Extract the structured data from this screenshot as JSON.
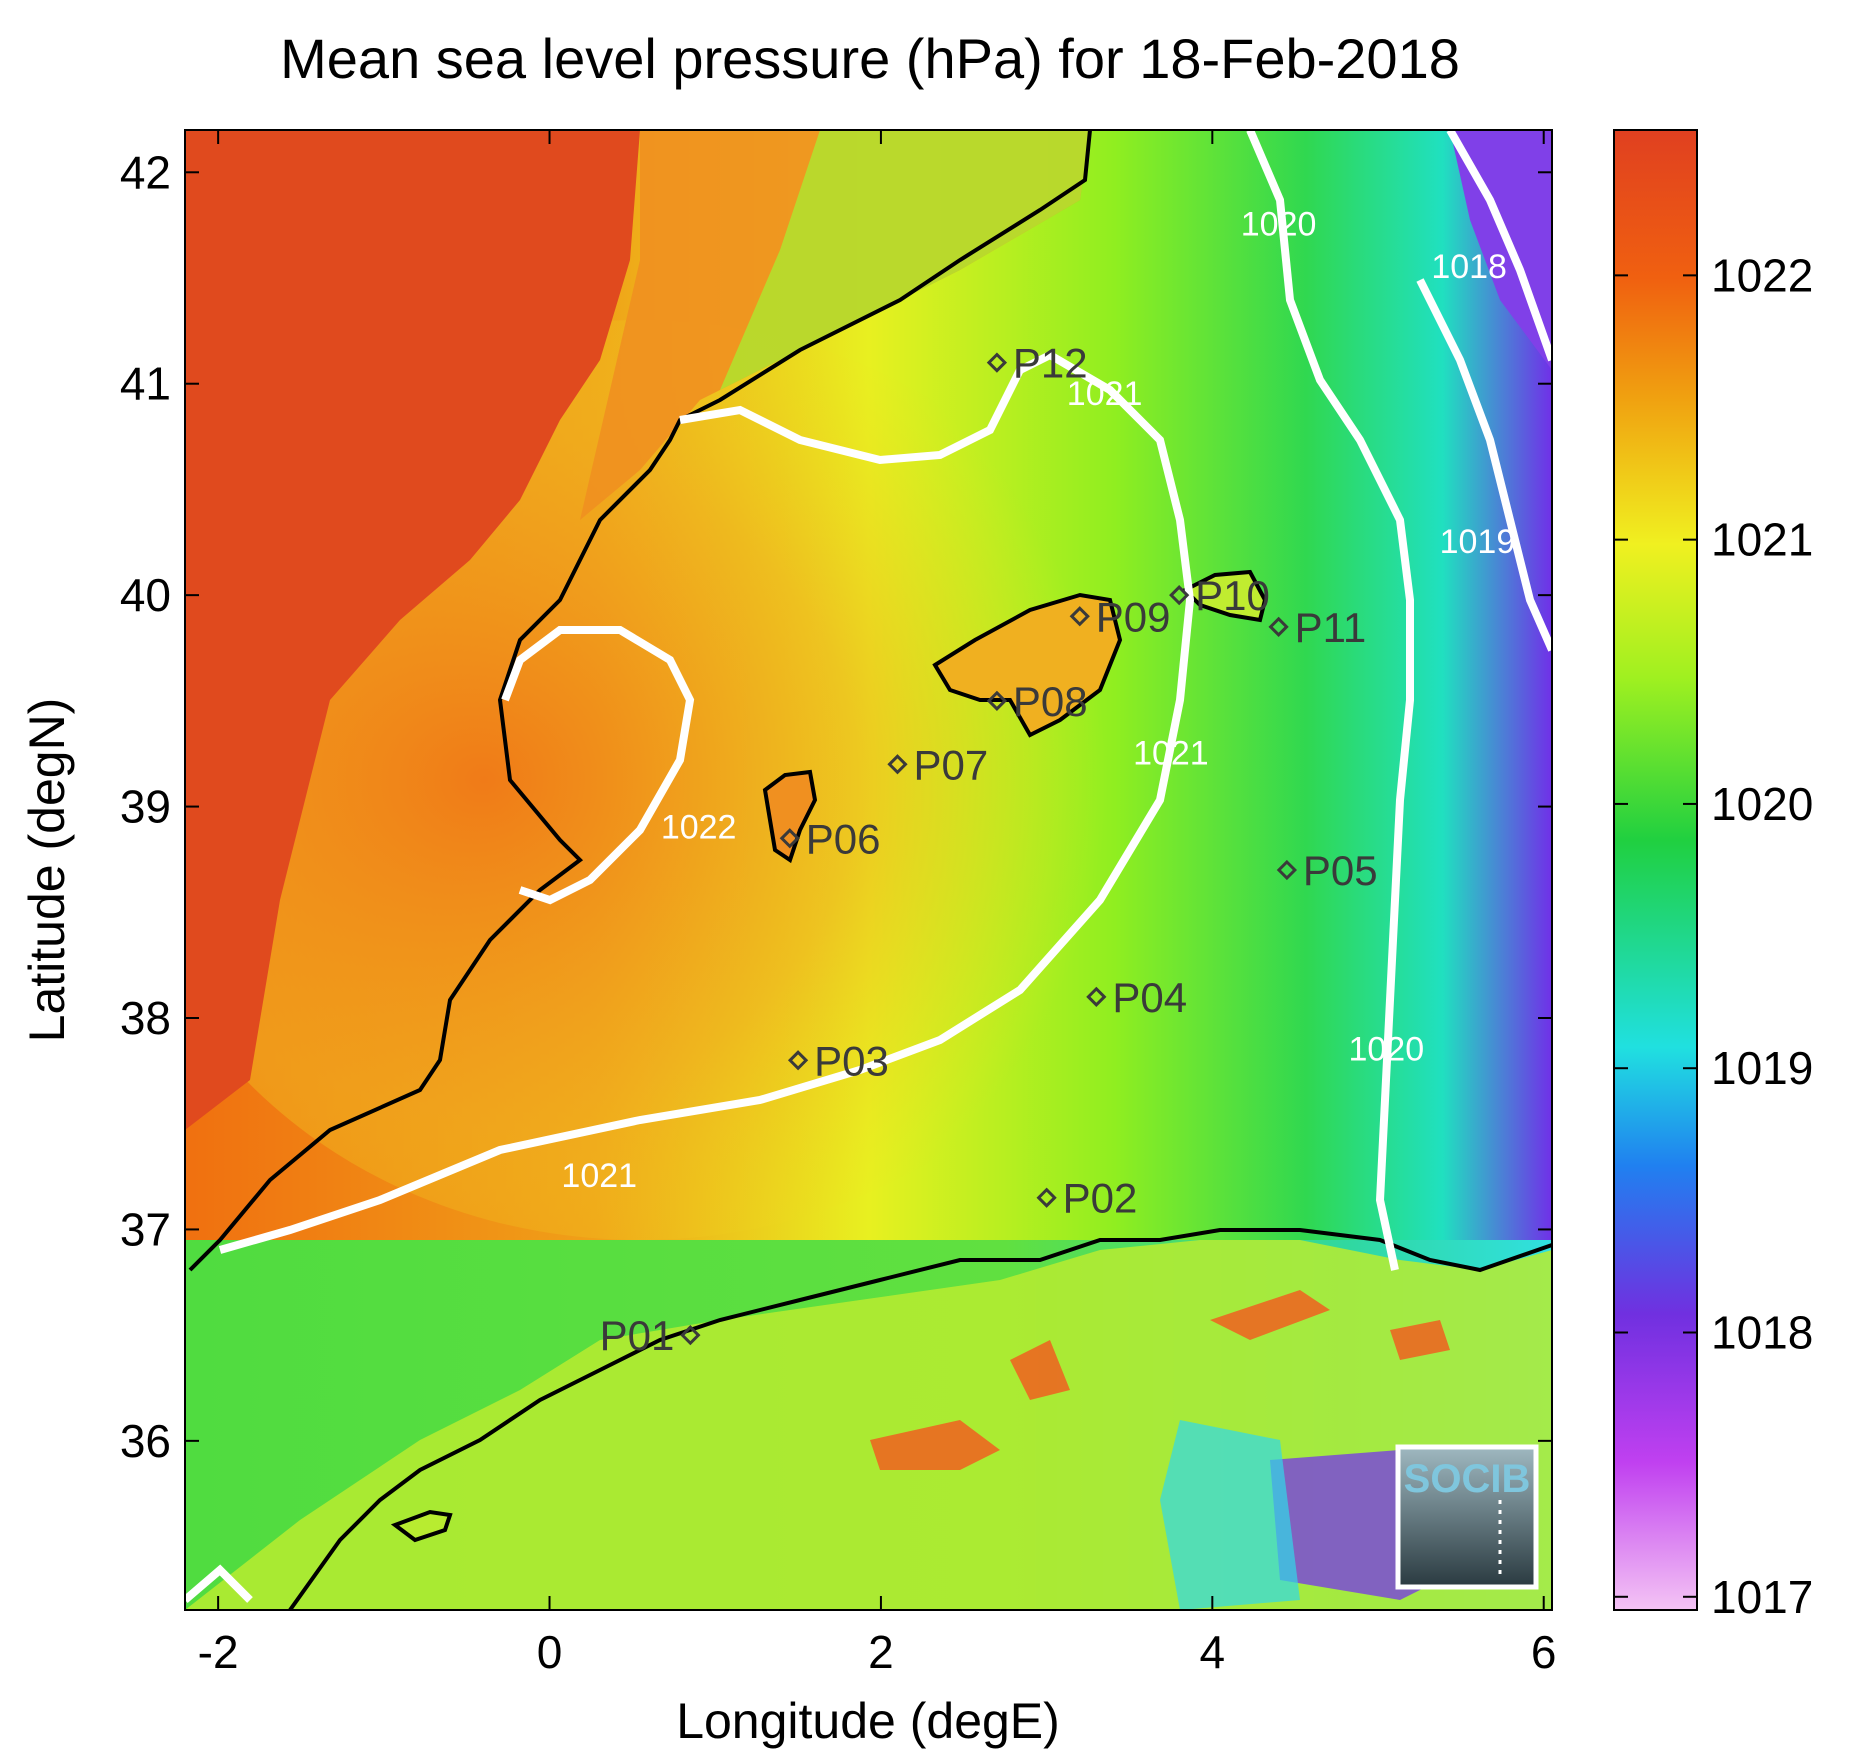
{
  "title": "Mean sea level pressure (hPa) for 18-Feb-2018",
  "xlabel": "Longitude (degE)",
  "ylabel": "Latitude (degN)",
  "logo_text": "SOCIB",
  "chart_data": {
    "type": "heatmap",
    "xlim": [
      -2.2,
      6.05
    ],
    "ylim": [
      35.2,
      42.2
    ],
    "x_ticks": [
      -2,
      0,
      2,
      4,
      6
    ],
    "y_ticks": [
      36,
      37,
      38,
      39,
      40,
      41,
      42
    ],
    "colorbar": {
      "range": [
        1016.95,
        1022.55
      ],
      "ticks": [
        1017,
        1018,
        1019,
        1020,
        1021,
        1022
      ],
      "colormap": [
        "#f4c4f4",
        "#c040f0",
        "#7030e0",
        "#2080f0",
        "#20e0e0",
        "#20d040",
        "#a0f020",
        "#f0f020",
        "#f0a010",
        "#f06010",
        "#e04020"
      ]
    },
    "contour_labels": [
      {
        "text": "1022",
        "lon": 0.9,
        "lat": 38.85
      },
      {
        "text": "1021",
        "lon": 3.35,
        "lat": 40.9
      },
      {
        "text": "1021",
        "lon": 3.75,
        "lat": 39.2
      },
      {
        "text": "1021",
        "lon": 0.3,
        "lat": 37.2
      },
      {
        "text": "1020",
        "lon": 4.4,
        "lat": 41.7
      },
      {
        "text": "1020",
        "lon": 5.05,
        "lat": 37.8
      },
      {
        "text": "1019",
        "lon": 5.6,
        "lat": 40.2
      },
      {
        "text": "1018",
        "lon": 5.55,
        "lat": 41.5
      }
    ],
    "stations": [
      {
        "name": "P01",
        "lon": 0.85,
        "lat": 36.5
      },
      {
        "name": "P02",
        "lon": 3.0,
        "lat": 37.15
      },
      {
        "name": "P03",
        "lon": 1.5,
        "lat": 37.8
      },
      {
        "name": "P04",
        "lon": 3.3,
        "lat": 38.1
      },
      {
        "name": "P05",
        "lon": 4.45,
        "lat": 38.7
      },
      {
        "name": "P06",
        "lon": 1.45,
        "lat": 38.85
      },
      {
        "name": "P07",
        "lon": 2.1,
        "lat": 39.2
      },
      {
        "name": "P08",
        "lon": 2.7,
        "lat": 39.5
      },
      {
        "name": "P09",
        "lon": 3.2,
        "lat": 39.9
      },
      {
        "name": "P10",
        "lon": 3.8,
        "lat": 40.0
      },
      {
        "name": "P11",
        "lon": 4.4,
        "lat": 39.85
      },
      {
        "name": "P12",
        "lon": 2.7,
        "lat": 41.1
      }
    ]
  }
}
